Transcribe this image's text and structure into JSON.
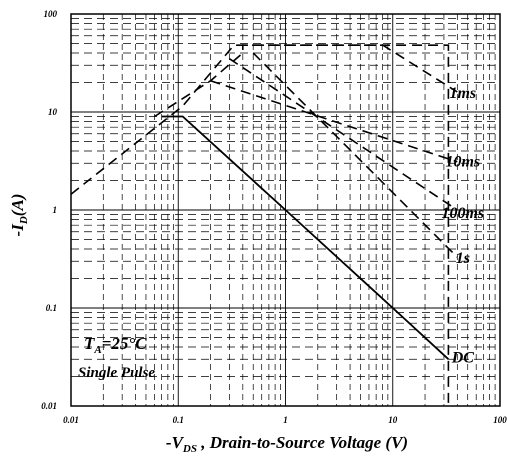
{
  "chart_data": {
    "type": "line",
    "x_scale": "log",
    "y_scale": "log",
    "xlim": [
      0.01,
      100
    ],
    "ylim": [
      0.01,
      100
    ],
    "grid": true,
    "x_ticks": [
      0.01,
      0.1,
      1,
      10,
      100
    ],
    "x_tick_labels": [
      "0.01",
      "0.1",
      "1",
      "10",
      "100"
    ],
    "y_ticks": [
      0.01,
      0.1,
      1,
      10,
      100
    ],
    "y_tick_labels": [
      "0.01",
      "0.1",
      "1",
      "10",
      "100"
    ],
    "xlabel": {
      "main": "-V",
      "sub": "DS",
      "rest": " , Drain-to-Source Voltage (V)"
    },
    "ylabel": {
      "main": "-I",
      "sub": "D",
      "rest": "(A)"
    },
    "annotations": {
      "condition_line1": {
        "main": "T",
        "sub": "A",
        "rest": "=25°C"
      },
      "condition_line2": "Single Pulse"
    },
    "series": [
      {
        "name": "1ms",
        "style": "dashed",
        "label_at": [
          45,
          16
        ],
        "points": [
          [
            0.06,
            9
          ],
          [
            0.2,
            20.8
          ],
          [
            0.4,
            40
          ],
          [
            0.4,
            48
          ],
          [
            8.1,
            48
          ],
          [
            40,
            16
          ]
        ]
      },
      {
        "name": "10ms",
        "style": "dashed",
        "label_at": [
          45,
          3.2
        ],
        "points": [
          [
            0.2,
            20.8
          ],
          [
            0.2,
            20.8
          ],
          [
            40,
            3.1
          ]
        ]
      },
      {
        "name": "100ms",
        "style": "dashed",
        "label_at": [
          45,
          0.95
        ],
        "points": [
          [
            0.3,
            35
          ],
          [
            40,
            1.0
          ]
        ]
      },
      {
        "name": "1s",
        "style": "dashed",
        "label_at": [
          45,
          0.33
        ],
        "points": [
          [
            0.5,
            40
          ],
          [
            40,
            0.33
          ]
        ]
      },
      {
        "name": "DC",
        "style": "solid",
        "label_at": [
          45,
          0.032
        ],
        "points": [
          [
            0.07,
            9
          ],
          [
            0.11,
            9
          ],
          [
            1,
            1.0
          ],
          [
            10,
            0.1
          ],
          [
            33,
            0.03
          ]
        ]
      },
      {
        "name": "",
        "style": "dashed",
        "points": [
          [
            0.01,
            1.45
          ],
          [
            0.11,
            11.5
          ],
          [
            0.33,
            48
          ],
          [
            33,
            48
          ],
          [
            33,
            0.01
          ]
        ]
      }
    ]
  }
}
